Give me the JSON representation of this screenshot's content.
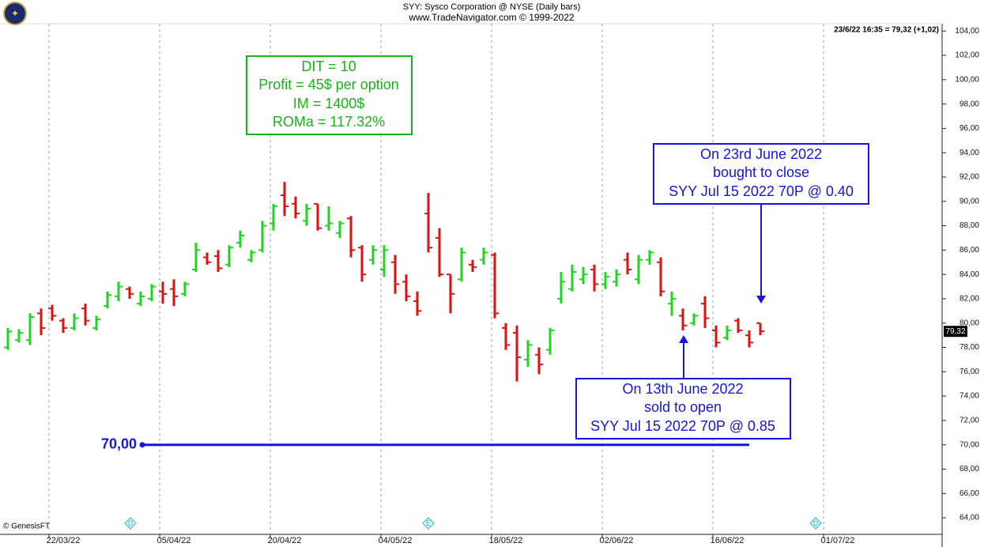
{
  "chart_data": {
    "type": "ohlc",
    "title": "SYY:  Sysco Corporation @ NYSE  (Daily bars)",
    "subtitle": "www.TradeNavigator.com © 1999-2022",
    "status": "23/6/22 16:35 = 79,32 (+1,02)",
    "price_tag": "79,32",
    "credit": "© GenesisFT",
    "up_color": "#1ed61e",
    "down_color": "#e31010",
    "categories": [
      null,
      null,
      null,
      null,
      "22/03/22",
      null,
      null,
      null,
      null,
      null,
      null,
      null,
      null,
      null,
      "05/04/22",
      null,
      null,
      null,
      null,
      null,
      null,
      null,
      null,
      null,
      "20/04/22",
      null,
      null,
      null,
      null,
      null,
      null,
      null,
      null,
      null,
      "04/05/22",
      null,
      null,
      null,
      null,
      null,
      null,
      null,
      null,
      null,
      "18/05/22",
      null,
      null,
      null,
      null,
      null,
      null,
      null,
      null,
      null,
      "02/06/22",
      null,
      null,
      null,
      null,
      null,
      null,
      null,
      null,
      null,
      "16/06/22",
      null,
      null,
      null,
      null,
      null,
      null,
      null,
      null,
      null,
      "01/07/22"
    ],
    "open": [
      78.0,
      78.6,
      78.6,
      80.8,
      81.2,
      80.2,
      79.6,
      81.2,
      79.6,
      81.4,
      82.2,
      82.8,
      81.6,
      82.0,
      82.6,
      82.8,
      82.4,
      84.4,
      85.4,
      85.5,
      84.8,
      86.6,
      85.2,
      86.0,
      88.2,
      90.5,
      89.8,
      88.4,
      89.8,
      88.0,
      87.4,
      88.6,
      86.2,
      85.2,
      84.4,
      85.0,
      83.4,
      81.8,
      89.0,
      87.0,
      84.0,
      83.6,
      84.8,
      85.2,
      85.6,
      79.6,
      79.2,
      77.0,
      77.4,
      77.8,
      82.0,
      82.8,
      83.6,
      84.4,
      83.2,
      83.4,
      85.2,
      83.6,
      85.2,
      85.0,
      81.6,
      80.6,
      80.0,
      81.6,
      79.4,
      78.8,
      80.2,
      79.0,
      80.0,
      null,
      null,
      null,
      null,
      null,
      null
    ],
    "high": [
      79.6,
      79.5,
      80.8,
      81.2,
      81.5,
      80.4,
      80.8,
      81.6,
      80.6,
      82.6,
      83.4,
      83.0,
      82.6,
      83.2,
      83.4,
      83.6,
      83.4,
      86.6,
      85.8,
      86.0,
      86.4,
      87.6,
      86.0,
      88.4,
      89.8,
      91.6,
      90.4,
      89.8,
      89.8,
      89.6,
      88.4,
      88.8,
      86.4,
      86.4,
      86.4,
      85.6,
      84.0,
      82.6,
      90.7,
      87.8,
      84.0,
      86.2,
      85.2,
      86.2,
      85.8,
      80.0,
      79.8,
      78.6,
      78.0,
      79.6,
      84.2,
      84.8,
      84.6,
      84.8,
      84.2,
      84.4,
      85.8,
      85.6,
      86.0,
      85.4,
      82.6,
      81.2,
      80.8,
      82.2,
      79.8,
      79.8,
      80.4,
      79.4,
      80.0,
      null,
      null,
      null,
      null,
      null,
      null
    ],
    "low": [
      77.8,
      78.4,
      78.2,
      79.0,
      80.2,
      79.2,
      79.4,
      79.8,
      79.4,
      81.2,
      81.8,
      82.0,
      81.4,
      81.8,
      81.6,
      81.4,
      82.2,
      84.2,
      84.8,
      84.2,
      84.6,
      86.2,
      85.0,
      85.8,
      87.6,
      88.8,
      88.6,
      88.0,
      87.6,
      87.6,
      87.0,
      85.4,
      83.4,
      84.8,
      83.8,
      82.4,
      81.8,
      80.6,
      85.8,
      83.8,
      80.8,
      83.4,
      84.2,
      84.8,
      80.4,
      77.8,
      75.2,
      76.4,
      75.8,
      77.4,
      81.6,
      82.6,
      83.2,
      82.6,
      82.8,
      83.0,
      84.0,
      83.2,
      84.8,
      82.2,
      80.6,
      79.4,
      79.8,
      79.6,
      78.0,
      78.6,
      79.2,
      78.0,
      79.0,
      null,
      null,
      null,
      null,
      null,
      null
    ],
    "close": [
      79.3,
      79.2,
      80.5,
      79.6,
      80.6,
      79.6,
      80.4,
      80.2,
      80.3,
      82.3,
      83.0,
      82.4,
      82.2,
      83.0,
      82.4,
      82.2,
      83.2,
      86.0,
      85.0,
      84.5,
      86.2,
      87.2,
      85.8,
      88.0,
      89.6,
      89.6,
      89.0,
      89.4,
      87.8,
      88.2,
      88.2,
      86.0,
      84.0,
      86.0,
      86.0,
      83.2,
      82.2,
      81.0,
      86.2,
      84.0,
      82.4,
      85.8,
      84.6,
      85.8,
      80.8,
      78.2,
      77.2,
      78.2,
      76.6,
      79.4,
      83.4,
      84.2,
      84.0,
      83.2,
      83.8,
      84.0,
      84.4,
      85.2,
      85.8,
      82.6,
      82.0,
      79.8,
      80.6,
      80.4,
      78.4,
      79.4,
      79.4,
      78.4,
      79.32,
      null,
      null,
      null,
      null,
      null,
      null
    ],
    "ylim": [
      62.9,
      104.6
    ],
    "yticks": [
      {
        "value": 64,
        "label": "64,00"
      },
      {
        "value": 66,
        "label": "66,00"
      },
      {
        "value": 68,
        "label": "68,00"
      },
      {
        "value": 70,
        "label": "70,00"
      },
      {
        "value": 72,
        "label": "72,00"
      },
      {
        "value": 74,
        "label": "74,00"
      },
      {
        "value": 76,
        "label": "76,00"
      },
      {
        "value": 78,
        "label": "78,00"
      },
      {
        "value": 80,
        "label": "80,00"
      },
      {
        "value": 82,
        "label": "82,00"
      },
      {
        "value": 84,
        "label": "84,00"
      },
      {
        "value": 86,
        "label": "86,00"
      },
      {
        "value": 88,
        "label": "88,00"
      },
      {
        "value": 90,
        "label": "90,00"
      },
      {
        "value": 92,
        "label": "92,00"
      },
      {
        "value": 94,
        "label": "94,00"
      },
      {
        "value": 96,
        "label": "96,00"
      },
      {
        "value": 98,
        "label": "98,00"
      },
      {
        "value": 100,
        "label": "100,00"
      },
      {
        "value": 102,
        "label": "102,00"
      },
      {
        "value": 104,
        "label": "104,00"
      }
    ],
    "hline": {
      "value": 70,
      "label": "70,00"
    },
    "events": [
      "D",
      "E",
      "D"
    ],
    "summary_box": [
      "DIT = 10",
      "Profit = 45$ per option",
      "IM = 1400$",
      "ROMa = 117.32%"
    ],
    "close_note": [
      "On 23rd June 2022",
      "bought to close",
      "SYY Jul 15 2022 70P @ 0.40"
    ],
    "open_note": [
      "On 13th June 2022",
      "sold to open",
      "SYY Jul 15 2022 70P @ 0.85"
    ]
  }
}
